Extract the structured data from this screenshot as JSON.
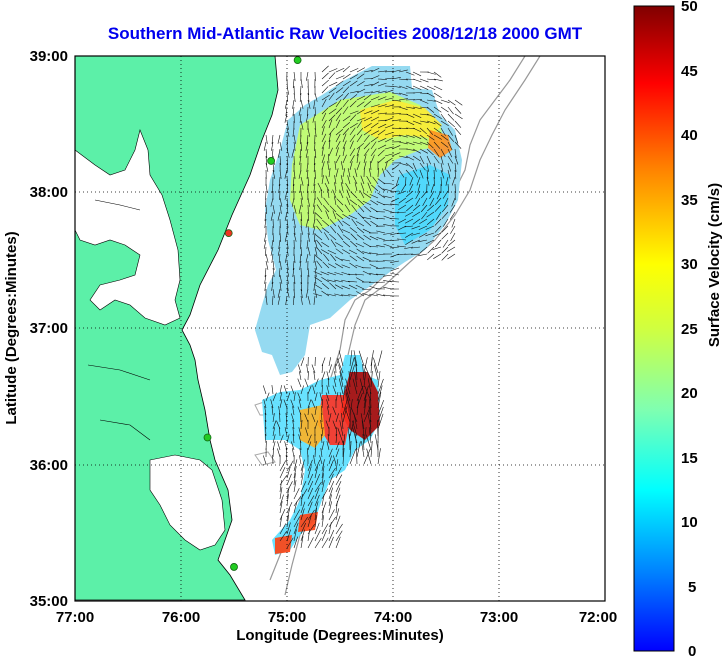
{
  "title": "Southern Mid-Atlantic Raw Velocities 2008/12/18 2000 GMT",
  "xlabel": "Longitude (Degrees:Minutes)",
  "ylabel": "Latitude (Degrees:Minutes)",
  "colorbar_label": "Surface Velocity (cm/s)",
  "x_ticks": [
    "77:00",
    "76:00",
    "75:00",
    "74:00",
    "73:00",
    "72:00"
  ],
  "y_ticks": [
    "39:00",
    "38:00",
    "37:00",
    "36:00",
    "35:00"
  ],
  "colorbar_ticks": [
    "50",
    "45",
    "40",
    "35",
    "30",
    "25",
    "20",
    "15",
    "10",
    "5",
    "0"
  ],
  "colors": {
    "land": "#5cf0a8",
    "title": "#0000ee",
    "station": "#22cc22",
    "station_alt": "#ee3322"
  },
  "chart_data": {
    "type": "heatmap",
    "title": "Southern Mid-Atlantic Raw Velocities 2008/12/18 2000 GMT",
    "xlabel": "Longitude (Degrees:Minutes)",
    "ylabel": "Latitude (Degrees:Minutes)",
    "xlim": [
      -77,
      -72
    ],
    "ylim": [
      35,
      39
    ],
    "colorbar_range": [
      0,
      50
    ],
    "colorbar_unit": "cm/s",
    "grid": true,
    "stations": [
      {
        "lon": -74.9,
        "lat": 38.97
      },
      {
        "lon": -75.15,
        "lat": 38.23
      },
      {
        "lon": -75.55,
        "lat": 37.7
      },
      {
        "lon": -75.75,
        "lat": 36.2
      },
      {
        "lon": -75.5,
        "lat": 35.25
      }
    ]
  }
}
